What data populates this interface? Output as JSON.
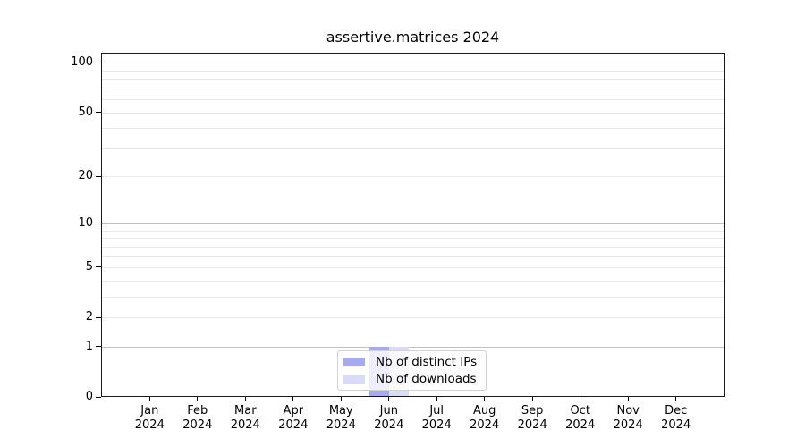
{
  "figure": {
    "background": "#ffffff",
    "text_color": "#000000",
    "spine_color": "#1a1a1a"
  },
  "chart_data": {
    "type": "bar",
    "title": "assertive.matrices 2024",
    "xlabel": "",
    "ylabel": "",
    "categories": [
      "Jan 2024",
      "Feb 2024",
      "Mar 2024",
      "Apr 2024",
      "May 2024",
      "Jun 2024",
      "Jul 2024",
      "Aug 2024",
      "Sep 2024",
      "Oct 2024",
      "Nov 2024",
      "Dec 2024"
    ],
    "series": [
      {
        "name": "Nb of distinct IPs",
        "color": "#a8aaee",
        "values": [
          0,
          0,
          0,
          0,
          0,
          1,
          0,
          0,
          0,
          0,
          0,
          0
        ]
      },
      {
        "name": "Nb of downloads",
        "color": "#d9dbf8",
        "values": [
          0,
          0,
          0,
          0,
          0,
          1,
          0,
          0,
          0,
          0,
          0,
          0
        ]
      }
    ],
    "yscale": "log1p",
    "ylim": [
      0,
      115
    ],
    "yticks": [
      0,
      1,
      2,
      5,
      10,
      20,
      50,
      100
    ],
    "y_major_grid": [
      1,
      10,
      100
    ],
    "y_minor_grid": [
      2,
      3,
      4,
      5,
      6,
      7,
      8,
      9,
      20,
      30,
      40,
      50,
      60,
      70,
      80,
      90
    ],
    "grid": {
      "major_color": "#c0c0c0",
      "minor_color": "#e8e8e8",
      "vertical": false
    },
    "legend": {
      "position": "lower center",
      "frame": true,
      "framealpha": 0.8
    }
  }
}
